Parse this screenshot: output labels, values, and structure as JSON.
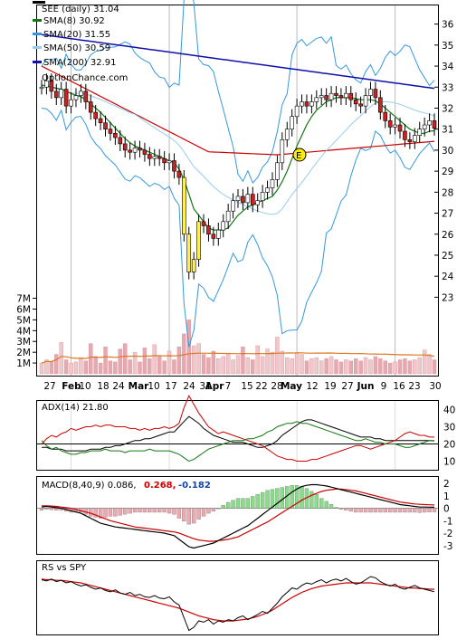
{
  "chart_data": [
    {
      "type": "candlestick",
      "panel": "price",
      "legend": [
        {
          "label": "SEE (daily) 31.04",
          "color": "#000000"
        },
        {
          "label": "SMA(8) 30.92",
          "color": "#117711"
        },
        {
          "label": "SMA(20) 31.55",
          "color": "#3399dd"
        },
        {
          "label": "SMA(50) 30.59",
          "color": "#99ccee"
        },
        {
          "label": "SMA(200) 32.91",
          "color": "#1111aa"
        }
      ],
      "watermark": "OptionChance.com",
      "event_marker": "E",
      "yticks": [
        23,
        24,
        25,
        26,
        27,
        28,
        29,
        30,
        31,
        32,
        33,
        34,
        35,
        36
      ],
      "ylim": [
        22.5,
        36.5
      ],
      "close": [
        33.0,
        33.3,
        32.8,
        32.5,
        32.9,
        32.1,
        32.4,
        32.6,
        32.8,
        32.3,
        31.8,
        31.5,
        31.3,
        31.0,
        30.8,
        30.6,
        30.3,
        30.0,
        29.9,
        30.1,
        30.0,
        29.8,
        29.6,
        29.7,
        29.6,
        29.4,
        29.5,
        29.0,
        28.7,
        26.0,
        24.2,
        24.8,
        26.6,
        26.4,
        26.0,
        25.8,
        26.2,
        26.6,
        27.1,
        27.6,
        27.8,
        27.5,
        27.9,
        27.4,
        27.6,
        28.0,
        28.2,
        28.6,
        29.4,
        30.5,
        31.0,
        31.6,
        32.1,
        32.3,
        32.1,
        32.3,
        32.5,
        32.6,
        32.4,
        32.7,
        32.6,
        32.5,
        32.7,
        32.4,
        32.2,
        32.1,
        32.6,
        32.9,
        32.5,
        31.8,
        31.4,
        31.1,
        31.2,
        30.9,
        30.5,
        30.4,
        30.7,
        31.0,
        31.2,
        31.4,
        31.04
      ],
      "sma8": [
        33.1,
        33.05,
        33.0,
        32.95,
        32.9,
        32.8,
        32.7,
        32.6,
        32.55,
        32.4,
        32.2,
        32.0,
        31.8,
        31.55,
        31.3,
        31.05,
        30.8,
        30.55,
        30.35,
        30.2,
        30.1,
        30.0,
        29.9,
        29.8,
        29.7,
        29.6,
        29.5,
        29.4,
        29.1,
        28.6,
        27.9,
        27.2,
        26.9,
        26.6,
        26.3,
        26.2,
        26.2,
        26.2,
        26.3,
        26.6,
        26.9,
        27.1,
        27.3,
        27.4,
        27.5,
        27.6,
        27.7,
        27.8,
        28.1,
        28.5,
        29.0,
        29.6,
        30.2,
        30.7,
        31.2,
        31.6,
        31.9,
        32.1,
        32.3,
        32.4,
        32.5,
        32.5,
        32.5,
        32.5,
        32.45,
        32.4,
        32.4,
        32.4,
        32.35,
        32.2,
        32.0,
        31.8,
        31.6,
        31.4,
        31.2,
        31.0,
        30.9,
        30.8,
        30.8,
        30.9,
        30.92
      ]
    },
    {
      "type": "bar",
      "panel": "volume",
      "yticks": [
        "1M",
        "2M",
        "3M",
        "4M",
        "5M",
        "6M",
        "7M"
      ],
      "ylim": [
        0,
        7.8
      ],
      "xticks": [
        "27",
        "Feb",
        "10",
        "18",
        "24",
        "Mar",
        "10",
        "17",
        "24",
        "31",
        "Apr",
        "7",
        "15",
        "22",
        "28",
        "May",
        "12",
        "19",
        "27",
        "Jun",
        "9",
        "16",
        "23",
        "30"
      ],
      "volume": [
        1.0,
        1.3,
        1.1,
        1.8,
        2.9,
        1.3,
        1.0,
        1.1,
        1.5,
        1.2,
        2.8,
        1.6,
        1.0,
        2.5,
        1.2,
        1.1,
        2.3,
        2.8,
        1.3,
        2.0,
        1.1,
        2.4,
        1.4,
        2.7,
        1.6,
        1.2,
        2.1,
        1.3,
        2.5,
        3.7,
        5.0,
        2.6,
        2.8,
        1.8,
        1.5,
        2.1,
        1.4,
        1.6,
        1.9,
        1.3,
        1.7,
        2.5,
        1.5,
        1.3,
        2.6,
        1.6,
        2.3,
        2.0,
        3.4,
        2.1,
        1.5,
        1.4,
        1.9,
        1.8,
        1.2,
        1.4,
        1.5,
        1.2,
        1.4,
        1.6,
        1.3,
        1.1,
        1.3,
        1.2,
        1.4,
        1.2,
        1.5,
        1.3,
        1.6,
        1.4,
        1.2,
        1.0,
        1.1,
        1.3,
        1.4,
        1.2,
        1.3,
        1.5,
        2.2,
        1.8,
        1.3
      ]
    },
    {
      "type": "line",
      "panel": "adx",
      "label": "ADX(14) 21.80",
      "yticks": [
        10,
        20,
        30,
        40
      ],
      "ylim": [
        5,
        45
      ],
      "series": [
        {
          "color": "#000000",
          "values": [
            18,
            18,
            17,
            17,
            17,
            16,
            16,
            16,
            16,
            16,
            17,
            17,
            17,
            18,
            18,
            19,
            19,
            20,
            21,
            22,
            22,
            23,
            23,
            24,
            25,
            26,
            27,
            27,
            30,
            33,
            36,
            34,
            32,
            29,
            27,
            25,
            24,
            23,
            22,
            21,
            21,
            21,
            20,
            19,
            18,
            18,
            19,
            20,
            22,
            25,
            27,
            29,
            31,
            33,
            34,
            34,
            33,
            32,
            31,
            30,
            29,
            28,
            27,
            26,
            25,
            24,
            24,
            24,
            23,
            23,
            22,
            22,
            22,
            22,
            22,
            22,
            22,
            22,
            22,
            22,
            21.8
          ]
        },
        {
          "color": "#cc0000",
          "values": [
            20,
            23,
            25,
            24,
            26,
            27,
            29,
            28,
            29,
            30,
            30,
            31,
            30,
            31,
            31,
            30,
            30,
            30,
            29,
            29,
            28,
            29,
            28,
            29,
            29,
            30,
            29,
            30,
            32,
            41,
            48,
            43,
            38,
            34,
            30,
            28,
            26,
            27,
            26,
            25,
            24,
            23,
            22,
            21,
            20,
            19,
            17,
            15,
            13,
            12,
            11,
            11,
            10,
            10,
            10,
            11,
            11,
            12,
            13,
            14,
            15,
            16,
            17,
            18,
            19,
            19,
            18,
            17,
            18,
            19,
            20,
            21,
            22,
            24,
            26,
            27,
            26,
            25,
            25,
            24,
            24
          ]
        },
        {
          "color": "#117711",
          "values": [
            22,
            19,
            17,
            18,
            16,
            15,
            14,
            14,
            15,
            15,
            16,
            16,
            16,
            17,
            16,
            16,
            16,
            15,
            16,
            16,
            16,
            16,
            17,
            16,
            16,
            16,
            16,
            15,
            14,
            12,
            10,
            11,
            13,
            15,
            17,
            18,
            19,
            20,
            21,
            22,
            22,
            22,
            23,
            23,
            24,
            25,
            27,
            28,
            30,
            31,
            32,
            32,
            33,
            32,
            32,
            31,
            30,
            29,
            28,
            27,
            26,
            25,
            24,
            23,
            22,
            22,
            23,
            22,
            21,
            21,
            20,
            20,
            20,
            19,
            18,
            18,
            19,
            20,
            21,
            22,
            22
          ]
        }
      ]
    },
    {
      "type": "line",
      "panel": "macd",
      "label_prefix": "MACD(8,40,9) 0.086,",
      "value2": "0.268,",
      "value3": "-0.182",
      "yticks": [
        -3,
        -2,
        -1,
        0,
        1,
        2
      ],
      "ylim": [
        -3.6,
        2.3
      ],
      "macd": [
        0.1,
        0.15,
        0.1,
        0.05,
        0.0,
        -0.1,
        -0.2,
        -0.3,
        -0.4,
        -0.6,
        -0.8,
        -1.0,
        -1.2,
        -1.3,
        -1.4,
        -1.5,
        -1.55,
        -1.6,
        -1.65,
        -1.7,
        -1.75,
        -1.8,
        -1.85,
        -1.9,
        -1.95,
        -2.0,
        -2.1,
        -2.2,
        -2.5,
        -2.8,
        -3.1,
        -3.2,
        -3.1,
        -3.0,
        -2.9,
        -2.8,
        -2.6,
        -2.4,
        -2.2,
        -2.0,
        -1.8,
        -1.6,
        -1.4,
        -1.1,
        -0.8,
        -0.5,
        -0.2,
        0.1,
        0.4,
        0.7,
        1.0,
        1.3,
        1.55,
        1.75,
        1.85,
        1.9,
        1.9,
        1.85,
        1.8,
        1.7,
        1.6,
        1.5,
        1.4,
        1.3,
        1.2,
        1.1,
        1.0,
        0.9,
        0.8,
        0.7,
        0.6,
        0.5,
        0.4,
        0.3,
        0.25,
        0.2,
        0.15,
        0.1,
        0.1,
        0.09,
        0.086
      ],
      "signal": [
        0.2,
        0.2,
        0.18,
        0.15,
        0.1,
        0.05,
        0.0,
        -0.1,
        -0.2,
        -0.3,
        -0.4,
        -0.55,
        -0.7,
        -0.85,
        -1.0,
        -1.1,
        -1.2,
        -1.3,
        -1.4,
        -1.5,
        -1.55,
        -1.6,
        -1.65,
        -1.7,
        -1.75,
        -1.8,
        -1.85,
        -1.9,
        -2.0,
        -2.15,
        -2.3,
        -2.45,
        -2.55,
        -2.6,
        -2.65,
        -2.65,
        -2.6,
        -2.55,
        -2.5,
        -2.4,
        -2.3,
        -2.1,
        -1.9,
        -1.7,
        -1.5,
        -1.3,
        -1.1,
        -0.85,
        -0.6,
        -0.35,
        -0.1,
        0.15,
        0.4,
        0.65,
        0.85,
        1.05,
        1.2,
        1.35,
        1.45,
        1.5,
        1.55,
        1.55,
        1.5,
        1.45,
        1.4,
        1.3,
        1.2,
        1.1,
        1.0,
        0.9,
        0.8,
        0.7,
        0.6,
        0.5,
        0.45,
        0.4,
        0.35,
        0.32,
        0.3,
        0.28,
        0.268
      ]
    },
    {
      "type": "line",
      "panel": "rs",
      "label": "RS vs SPY",
      "ylim": [
        0,
        1
      ],
      "rs": [
        0.85,
        0.83,
        0.86,
        0.82,
        0.84,
        0.8,
        0.82,
        0.78,
        0.75,
        0.77,
        0.73,
        0.7,
        0.72,
        0.68,
        0.66,
        0.69,
        0.64,
        0.62,
        0.65,
        0.6,
        0.62,
        0.58,
        0.57,
        0.6,
        0.56,
        0.55,
        0.58,
        0.5,
        0.45,
        0.25,
        0.05,
        0.1,
        0.2,
        0.18,
        0.22,
        0.15,
        0.2,
        0.18,
        0.22,
        0.2,
        0.25,
        0.28,
        0.22,
        0.26,
        0.3,
        0.35,
        0.32,
        0.4,
        0.48,
        0.58,
        0.65,
        0.72,
        0.7,
        0.76,
        0.8,
        0.78,
        0.82,
        0.85,
        0.8,
        0.84,
        0.86,
        0.83,
        0.87,
        0.82,
        0.78,
        0.8,
        0.85,
        0.9,
        0.88,
        0.82,
        0.78,
        0.75,
        0.78,
        0.72,
        0.7,
        0.73,
        0.76,
        0.72,
        0.7,
        0.68,
        0.66
      ],
      "sma": [
        0.86,
        0.85,
        0.85,
        0.84,
        0.84,
        0.83,
        0.82,
        0.81,
        0.8,
        0.78,
        0.76,
        0.74,
        0.72,
        0.7,
        0.68,
        0.66,
        0.64,
        0.62,
        0.6,
        0.58,
        0.56,
        0.54,
        0.52,
        0.5,
        0.48,
        0.46,
        0.44,
        0.42,
        0.4,
        0.37,
        0.34,
        0.31,
        0.28,
        0.26,
        0.24,
        0.22,
        0.21,
        0.2,
        0.2,
        0.2,
        0.21,
        0.22,
        0.23,
        0.25,
        0.27,
        0.3,
        0.33,
        0.37,
        0.42,
        0.47,
        0.52,
        0.57,
        0.61,
        0.65,
        0.68,
        0.71,
        0.73,
        0.75,
        0.76,
        0.77,
        0.78,
        0.79,
        0.8,
        0.8,
        0.8,
        0.8,
        0.8,
        0.8,
        0.79,
        0.78,
        0.77,
        0.76,
        0.75,
        0.74,
        0.73,
        0.72,
        0.72,
        0.71,
        0.71,
        0.7,
        0.7
      ]
    }
  ]
}
